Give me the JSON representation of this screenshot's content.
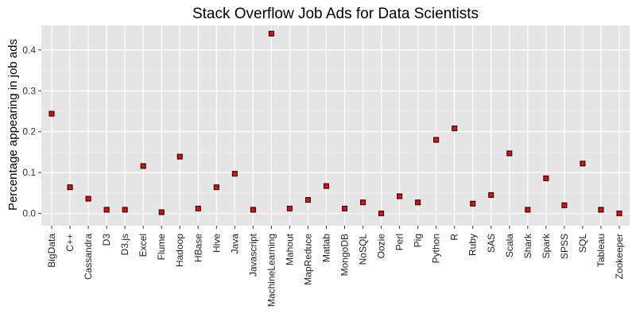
{
  "chart_data": {
    "type": "scatter",
    "title": "Stack Overflow Job Ads for Data Scientists",
    "xlabel": "",
    "ylabel": "Percentage appearing in job ads",
    "ylim": [
      -0.03,
      0.46
    ],
    "yticks": [
      0.0,
      0.1,
      0.2,
      0.3,
      0.4
    ],
    "ytick_labels": [
      "0.0",
      "0.1",
      "0.2",
      "0.3",
      "0.4"
    ],
    "grid": true,
    "background": "#e5e5e5",
    "point_fill": "#ff0000",
    "point_stroke": "#000000",
    "categories": [
      "BigData",
      "C++",
      "Cassandra",
      "D3",
      "D3.js",
      "Excel",
      "Flume",
      "Hadoop",
      "HBase",
      "Hive",
      "Java",
      "Javascript",
      "MachineLearning",
      "Mahout",
      "MapReduce",
      "Matlab",
      "MongoDB",
      "NoSQL",
      "Oozie",
      "Perl",
      "Pig",
      "Python",
      "R",
      "Ruby",
      "SAS",
      "Scala",
      "Shark",
      "Spark",
      "SPSS",
      "SQL",
      "Tableau",
      "Zookeeper"
    ],
    "values": [
      0.244,
      0.064,
      0.036,
      0.009,
      0.009,
      0.116,
      0.003,
      0.139,
      0.012,
      0.064,
      0.097,
      0.009,
      0.44,
      0.012,
      0.033,
      0.067,
      0.012,
      0.027,
      0.0,
      0.042,
      0.027,
      0.18,
      0.208,
      0.024,
      0.045,
      0.147,
      0.009,
      0.086,
      0.02,
      0.122,
      0.009,
      0.0
    ]
  }
}
